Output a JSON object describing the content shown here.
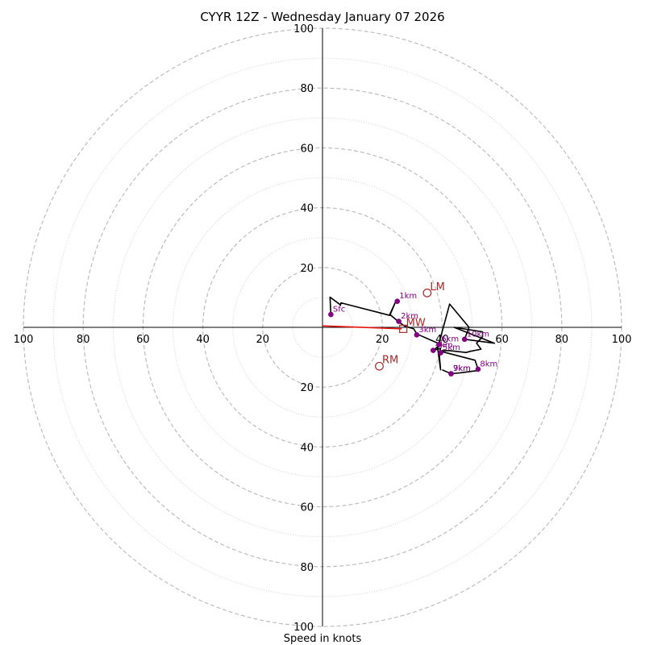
{
  "chart_data": {
    "type": "hodograph",
    "title": "CYYR 12Z - Wednesday January 07 2026",
    "xlabel": "Speed in knots",
    "range": [
      -100,
      100
    ],
    "rings_major": [
      20,
      40,
      60,
      80,
      100
    ],
    "rings_minor": [
      10,
      30,
      50,
      70,
      90
    ],
    "x_ticks": [
      "100",
      "80",
      "60",
      "40",
      "20",
      "20",
      "40",
      "60",
      "80",
      "100"
    ],
    "x_tick_values": [
      -100,
      -80,
      -60,
      -40,
      -20,
      20,
      40,
      60,
      80,
      100
    ],
    "y_ticks": [
      "100",
      "80",
      "60",
      "40",
      "20",
      "20",
      "40",
      "60",
      "80",
      "100"
    ],
    "y_tick_values": [
      100,
      80,
      60,
      40,
      20,
      -20,
      -40,
      -60,
      -80,
      -100
    ],
    "hodograph": [
      [
        2.8,
        4.3
      ],
      [
        2.5,
        10.1
      ],
      [
        6.0,
        7.5
      ],
      [
        6.2,
        8.2
      ],
      [
        22.5,
        4.0
      ],
      [
        24.5,
        8.7
      ],
      [
        22.5,
        4.3
      ],
      [
        25.5,
        1.8
      ],
      [
        27.5,
        0.4
      ],
      [
        30.5,
        -0.5
      ],
      [
        31.5,
        -2.2
      ],
      [
        39.5,
        -5.7
      ],
      [
        37.0,
        -7.7
      ],
      [
        39.5,
        -7.0
      ],
      [
        39.0,
        -8.6
      ],
      [
        39.5,
        -14.2
      ],
      [
        38.5,
        -7.0
      ],
      [
        42.5,
        7.8
      ],
      [
        49.0,
        0.0
      ],
      [
        47.5,
        -4.0
      ],
      [
        57.5,
        -5.3
      ],
      [
        44.0,
        0.0
      ],
      [
        53.5,
        -1.5
      ],
      [
        53.5,
        -3.1
      ],
      [
        53.0,
        -3.7
      ],
      [
        51.5,
        -5.3
      ],
      [
        53.0,
        -7.3
      ],
      [
        49.5,
        -8.0
      ],
      [
        48.0,
        -8.4
      ],
      [
        42.5,
        -7.8
      ],
      [
        40.0,
        -7.8
      ],
      [
        39.5,
        -8.0
      ],
      [
        51.0,
        -11.0
      ],
      [
        52.0,
        -14.0
      ],
      [
        51.5,
        -14.5
      ],
      [
        46.0,
        -15.2
      ],
      [
        43.0,
        -15.5
      ],
      [
        40.0,
        -14.2
      ]
    ],
    "height_markers": [
      {
        "label": "Sfc",
        "u": 2.8,
        "v": 4.3
      },
      {
        "label": "1km",
        "u": 25.0,
        "v": 8.7
      },
      {
        "label": "2km",
        "u": 25.5,
        "v": 2.0
      },
      {
        "label": "3km",
        "u": 31.5,
        "v": -2.5
      },
      {
        "label": "4km",
        "u": 37.0,
        "v": -7.7
      },
      {
        "label": "5km",
        "u": 39.5,
        "v": -8.5
      },
      {
        "label": "6km",
        "u": 39.0,
        "v": -5.7
      },
      {
        "label": "7km",
        "u": 43.0,
        "v": -15.5
      },
      {
        "label": "8km",
        "u": 52.0,
        "v": -14.0
      },
      {
        "label": "9km",
        "u": 43.0,
        "v": -15.5
      },
      {
        "label": "10km",
        "u": 47.5,
        "v": -4.0
      }
    ],
    "storm_motion": [
      {
        "label": "LM",
        "u": 35.0,
        "v": 11.5,
        "marker": "circle"
      },
      {
        "label": "MW",
        "u": 27.0,
        "v": -0.5,
        "marker": "square"
      },
      {
        "label": "RM",
        "u": 19.0,
        "v": -13.0,
        "marker": "circle"
      }
    ],
    "shear_vector": {
      "from": [
        0,
        0.5
      ],
      "to": [
        26.5,
        -0.5
      ]
    },
    "colors": {
      "hodograph": "#000000",
      "height_markers": "#800080",
      "storm_motion": "#a52a2a",
      "shear_vector": "#e8150c",
      "grid": "#bdbdbd"
    }
  }
}
